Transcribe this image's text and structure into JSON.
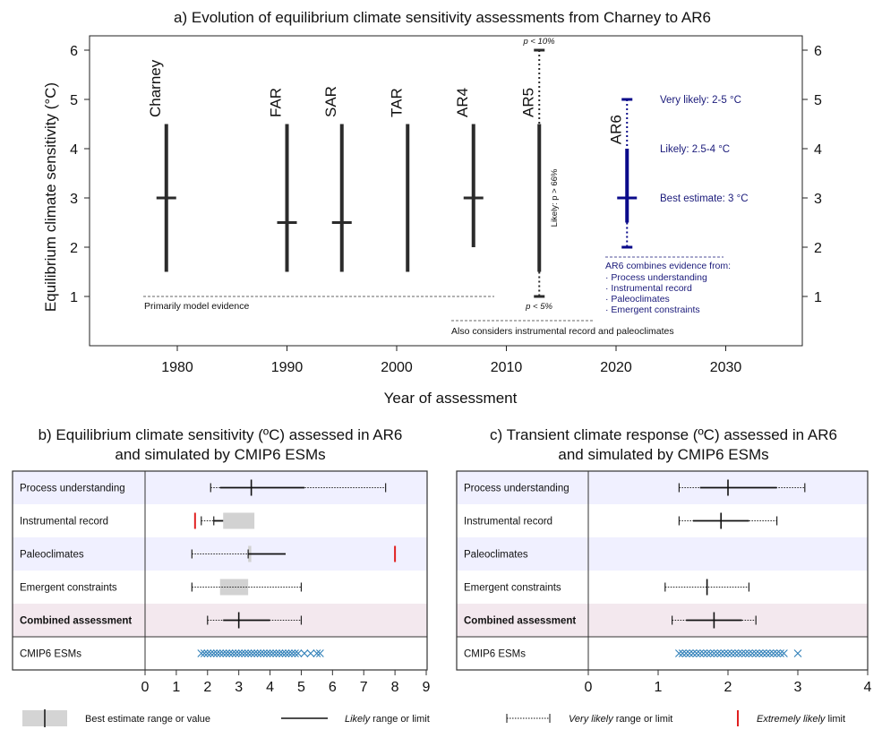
{
  "chart_data": [
    {
      "type": "range",
      "title": "a) Evolution of equilibrium climate sensitivity assessments from Charney to AR6",
      "xlabel": "Year of assessment",
      "ylabel": "Equilibrium climate sensitivity (°C)",
      "xlim": [
        1972,
        2036
      ],
      "ylim": [
        0,
        6
      ],
      "xticks": [
        "1980",
        "1990",
        "2000",
        "2010",
        "2020",
        "2030"
      ],
      "yticks": [
        "1",
        "2",
        "3",
        "4",
        "5",
        "6"
      ],
      "assessments": [
        {
          "name": "Charney",
          "year": 1979,
          "low": 1.5,
          "high": 4.5,
          "best": 3.0
        },
        {
          "name": "FAR",
          "year": 1990,
          "low": 1.5,
          "high": 4.5,
          "best": 2.5
        },
        {
          "name": "SAR",
          "year": 1995,
          "low": 1.5,
          "high": 4.5,
          "best": 2.5
        },
        {
          "name": "TAR",
          "year": 2001,
          "low": 1.5,
          "high": 4.5,
          "best": null
        },
        {
          "name": "AR4",
          "year": 2007,
          "low": 2.0,
          "high": 4.5,
          "best": 3.0
        },
        {
          "name": "AR5",
          "year": 2013,
          "low": 1.5,
          "high": 4.5,
          "best": null,
          "tail_low": 1.0,
          "tail_high": 6.0
        },
        {
          "name": "AR6",
          "year": 2021,
          "low": 2.5,
          "high": 4.0,
          "best": 3.0,
          "tail_low": 2.0,
          "tail_high": 5.0
        }
      ],
      "annotations": {
        "p10": "p < 10%",
        "p5": "p < 5%",
        "likely66": "Likely: p > 66%",
        "primarily": "Primarily model evidence",
        "also": "Also considers instrumental record and paleoclimates",
        "very_likely": "Very likely: 2-5 °C",
        "likely": "Likely: 2.5-4 °C",
        "best": "Best estimate: 3 °C",
        "combines_title": "AR6 combines evidence from:",
        "combines_items": [
          "· Process understanding",
          "· Instrumental record",
          "· Paleoclimates",
          "· Emergent constraints"
        ]
      },
      "colors": {
        "bars": "#2b2b2b",
        "ar6": "#0a0a8a"
      }
    },
    {
      "type": "range",
      "title": "b) Equilibrium climate sensitivity (ºC) assessed in AR6 and simulated by CMIP6 ESMs",
      "title_lines": [
        "b) Equilibrium climate sensitivity (ºC) assessed in AR6",
        "and simulated by CMIP6 ESMs"
      ],
      "xlim": [
        0,
        9
      ],
      "xticks": [
        "0",
        "1",
        "2",
        "3",
        "4",
        "5",
        "6",
        "7",
        "8",
        "9"
      ],
      "rows": [
        {
          "label": "Process understanding",
          "bold": false,
          "shade": "#f0f0ff",
          "vl": [
            2.1,
            7.7
          ],
          "l": [
            2.4,
            5.1
          ],
          "best": 3.4,
          "box": null,
          "xl": []
        },
        {
          "label": "Instrumental record",
          "bold": false,
          "shade": "#ffffff",
          "vl": [
            1.8,
            2.2
          ],
          "l": [
            2.2,
            2.5
          ],
          "best": null,
          "box": [
            2.5,
            3.5
          ],
          "xl": [
            1.6
          ]
        },
        {
          "label": "Paleoclimates",
          "bold": false,
          "shade": "#f0f0ff",
          "vl": [
            1.5,
            3.3
          ],
          "l": [
            3.3,
            4.5
          ],
          "best": null,
          "box": [
            3.3,
            3.4
          ],
          "xl": [
            8.0
          ]
        },
        {
          "label": "Emergent constraints",
          "bold": false,
          "shade": "#ffffff",
          "vl": [
            1.5,
            5.0
          ],
          "l": null,
          "best": null,
          "box": [
            2.4,
            3.3
          ],
          "xl": []
        },
        {
          "label": "Combined assessment",
          "bold": true,
          "shade": "#f3e8ee",
          "vl": [
            2.0,
            5.0
          ],
          "l": [
            2.5,
            4.0
          ],
          "best": 3.0,
          "box": null,
          "xl": []
        }
      ],
      "esm_label": "CMIP6 ESMs",
      "esm_values": [
        1.8,
        1.9,
        2.0,
        2.1,
        2.2,
        2.3,
        2.4,
        2.5,
        2.6,
        2.7,
        2.8,
        2.9,
        3.0,
        3.1,
        3.2,
        3.3,
        3.4,
        3.5,
        3.6,
        3.7,
        3.8,
        3.9,
        4.0,
        4.1,
        4.2,
        4.3,
        4.4,
        4.5,
        4.6,
        4.7,
        4.8,
        4.9,
        5.1,
        5.3,
        5.5,
        5.6
      ]
    },
    {
      "type": "range",
      "title": "c) Transient climate response (ºC) assessed in AR6 and simulated by CMIP6 ESMs",
      "title_lines": [
        "c) Transient climate response (ºC) assessed in AR6",
        "and simulated by CMIP6 ESMs"
      ],
      "xlim": [
        0,
        4
      ],
      "xticks": [
        "0",
        "1",
        "2",
        "3",
        "4"
      ],
      "rows": [
        {
          "label": "Process understanding",
          "bold": false,
          "shade": "#f0f0ff",
          "vl": [
            1.3,
            3.1
          ],
          "l": [
            1.6,
            2.7
          ],
          "best": 2.0,
          "box": null,
          "xl": []
        },
        {
          "label": "Instrumental record",
          "bold": false,
          "shade": "#ffffff",
          "vl": [
            1.3,
            2.7
          ],
          "l": [
            1.5,
            2.3
          ],
          "best": 1.9,
          "box": null,
          "xl": []
        },
        {
          "label": "Paleoclimates",
          "bold": false,
          "shade": "#f0f0ff",
          "vl": null,
          "l": null,
          "best": null,
          "box": null,
          "xl": []
        },
        {
          "label": "Emergent constraints",
          "bold": false,
          "shade": "#ffffff",
          "vl": [
            1.1,
            2.3
          ],
          "l": null,
          "best": 1.7,
          "box": null,
          "xl": []
        },
        {
          "label": "Combined assessment",
          "bold": true,
          "shade": "#f3e8ee",
          "vl": [
            1.2,
            2.4
          ],
          "l": [
            1.4,
            2.2
          ],
          "best": 1.8,
          "box": null,
          "xl": []
        }
      ],
      "esm_label": "CMIP6 ESMs",
      "esm_values": [
        1.3,
        1.35,
        1.4,
        1.45,
        1.5,
        1.55,
        1.6,
        1.65,
        1.7,
        1.75,
        1.8,
        1.85,
        1.9,
        1.95,
        2.0,
        2.05,
        2.1,
        2.15,
        2.2,
        2.25,
        2.3,
        2.35,
        2.4,
        2.45,
        2.5,
        2.55,
        2.6,
        2.65,
        2.7,
        2.75,
        2.8,
        3.0
      ]
    }
  ],
  "legend": {
    "best": "Best estimate range or value",
    "likely_word": "Likely",
    "likely_rest": " range or limit",
    "very_likely_word": "Very likely",
    "very_likely_rest": " range or limit",
    "extremely_word": "Extremely likely",
    "extremely_rest": " limit"
  }
}
